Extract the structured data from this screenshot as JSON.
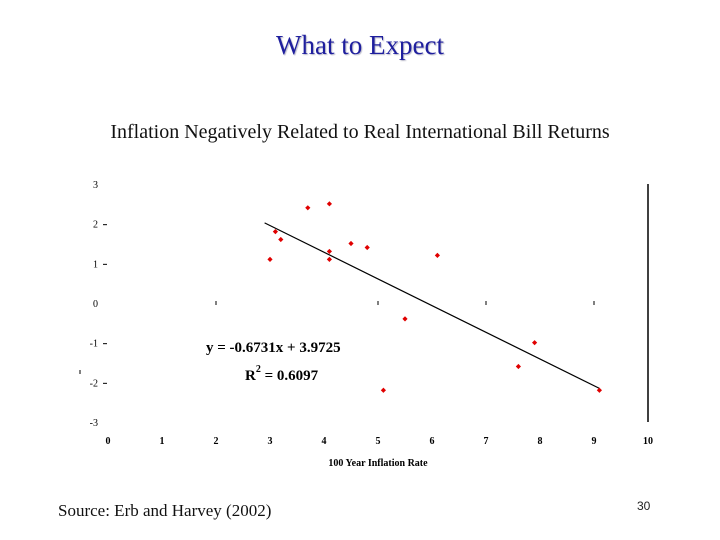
{
  "slide": {
    "title": "What to Expect",
    "subtitle": "Inflation Negatively Related to Real International Bill Returns",
    "source": "Source: Erb and Harvey (2002)",
    "page_number": "30"
  },
  "colors": {
    "title": "#1f1f9e",
    "points": "#e00000",
    "line": "#000000"
  },
  "chart_data": {
    "type": "scatter",
    "xlabel": "100 Year Inflation Rate",
    "ylabel": "",
    "xlim": [
      0,
      10
    ],
    "ylim": [
      -3,
      3
    ],
    "x_ticks": [
      0,
      1,
      2,
      3,
      4,
      5,
      6,
      7,
      8,
      9,
      10
    ],
    "y_ticks": [
      3,
      2,
      1,
      0,
      -1,
      -2,
      -3
    ],
    "grid": false,
    "points": [
      {
        "x": 3.0,
        "y": 1.1
      },
      {
        "x": 3.1,
        "y": 1.8
      },
      {
        "x": 3.2,
        "y": 1.6
      },
      {
        "x": 3.7,
        "y": 2.4
      },
      {
        "x": 4.1,
        "y": 2.5
      },
      {
        "x": 4.1,
        "y": 1.3
      },
      {
        "x": 4.1,
        "y": 1.1
      },
      {
        "x": 4.5,
        "y": 1.5
      },
      {
        "x": 4.8,
        "y": 1.4
      },
      {
        "x": 5.1,
        "y": -2.2
      },
      {
        "x": 5.5,
        "y": -0.4
      },
      {
        "x": 6.1,
        "y": 1.2
      },
      {
        "x": 7.6,
        "y": -1.6
      },
      {
        "x": 7.9,
        "y": -1.0
      },
      {
        "x": 9.1,
        "y": -2.2
      }
    ],
    "trendline": {
      "slope": -0.6731,
      "intercept": 3.9725,
      "x_range": [
        2.9,
        9.1
      ]
    },
    "annotations": {
      "equation": "y = -0.6731x + 3.9725",
      "r2_label": "R",
      "r2_sup": "2",
      "r2_value": " = 0.6097"
    }
  }
}
